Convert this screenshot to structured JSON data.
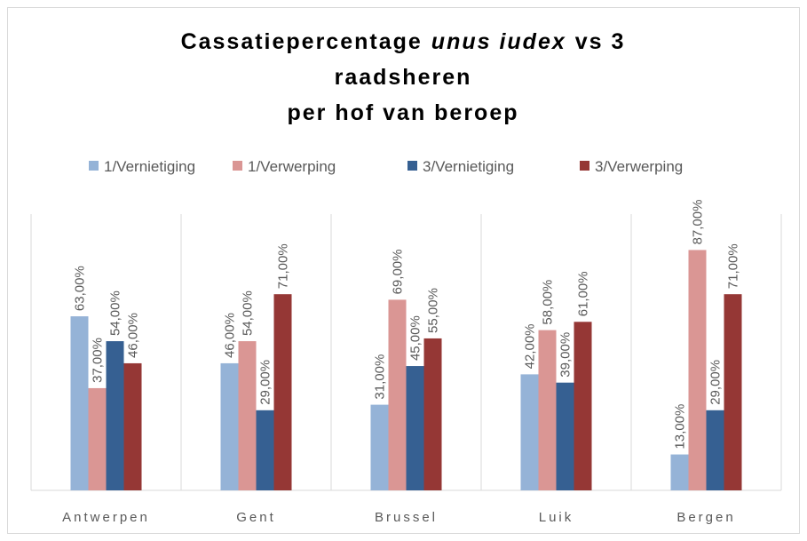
{
  "chart_data": {
    "type": "bar",
    "title": [
      [
        "Cassatiepercentage",
        "unus iudex",
        "vs 3"
      ],
      [
        "raadsheren"
      ],
      [
        "per hof van beroep"
      ]
    ],
    "categories": [
      "Antwerpen",
      "Gent",
      "Brussel",
      "Luik",
      "Bergen"
    ],
    "series": [
      {
        "name": "1/Vernietiging",
        "color": "#95b3d7",
        "values": [
          63,
          46,
          31,
          42,
          13
        ],
        "value_labels": [
          "63,00%",
          "46,00%",
          "31,00%",
          "42,00%",
          "13,00%"
        ]
      },
      {
        "name": "1/Verwerping",
        "color": "#da9694",
        "values": [
          37,
          54,
          69,
          58,
          87
        ],
        "value_labels": [
          "37,00%",
          "54,00%",
          "69,00%",
          "58,00%",
          "87,00%"
        ]
      },
      {
        "name": "3/Vernietiging",
        "color": "#366092",
        "values": [
          54,
          29,
          45,
          39,
          29
        ],
        "value_labels": [
          "54,00%",
          "29,00%",
          "45,00%",
          "39,00%",
          "29,00%"
        ]
      },
      {
        "name": "3/Verwerping",
        "color": "#953735",
        "values": [
          46,
          71,
          55,
          61,
          71
        ],
        "value_labels": [
          "46,00%",
          "71,00%",
          "55,00%",
          "61,00%",
          "71,00%"
        ]
      }
    ],
    "ylim": [
      0,
      100
    ],
    "legend": "top"
  }
}
